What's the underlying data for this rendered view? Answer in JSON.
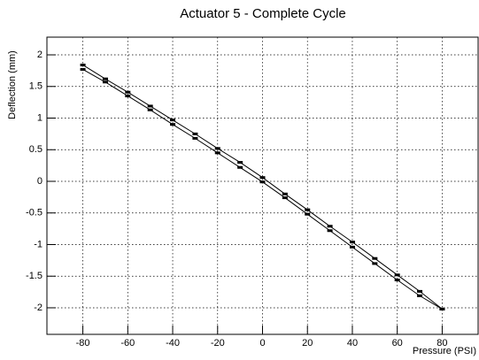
{
  "chart_data": {
    "type": "line",
    "title": "Actuator 5 - Complete Cycle",
    "x_label": "Pressure (PSI)",
    "y_label": "Deflection (mm)",
    "x": [
      -80,
      -70,
      -60,
      -50,
      -40,
      -30,
      -20,
      -10,
      0,
      10,
      20,
      30,
      40,
      50,
      60,
      70,
      80
    ],
    "series": [
      {
        "color": "#000000",
        "values": [
          1.84,
          1.62,
          1.41,
          1.19,
          0.97,
          0.75,
          0.52,
          0.3,
          0.06,
          -0.2,
          -0.45,
          -0.71,
          -0.96,
          -1.22,
          -1.48,
          -1.74,
          -2.02
        ]
      },
      {
        "color": "#000000",
        "values": [
          1.77,
          1.57,
          1.35,
          1.13,
          0.9,
          0.68,
          0.45,
          0.22,
          -0.01,
          -0.26,
          -0.52,
          -0.78,
          -1.04,
          -1.3,
          -1.56,
          -1.81,
          -2.02
        ]
      }
    ],
    "xlim": [
      -96,
      96
    ],
    "ylim": [
      -2.42,
      2.28
    ],
    "xticks": [
      -80,
      -60,
      -40,
      -20,
      0,
      20,
      40,
      60,
      80
    ],
    "yticks": [
      -2,
      -1.5,
      -1,
      -0.5,
      0,
      0.5,
      1,
      1.5,
      2
    ],
    "grid": true
  }
}
